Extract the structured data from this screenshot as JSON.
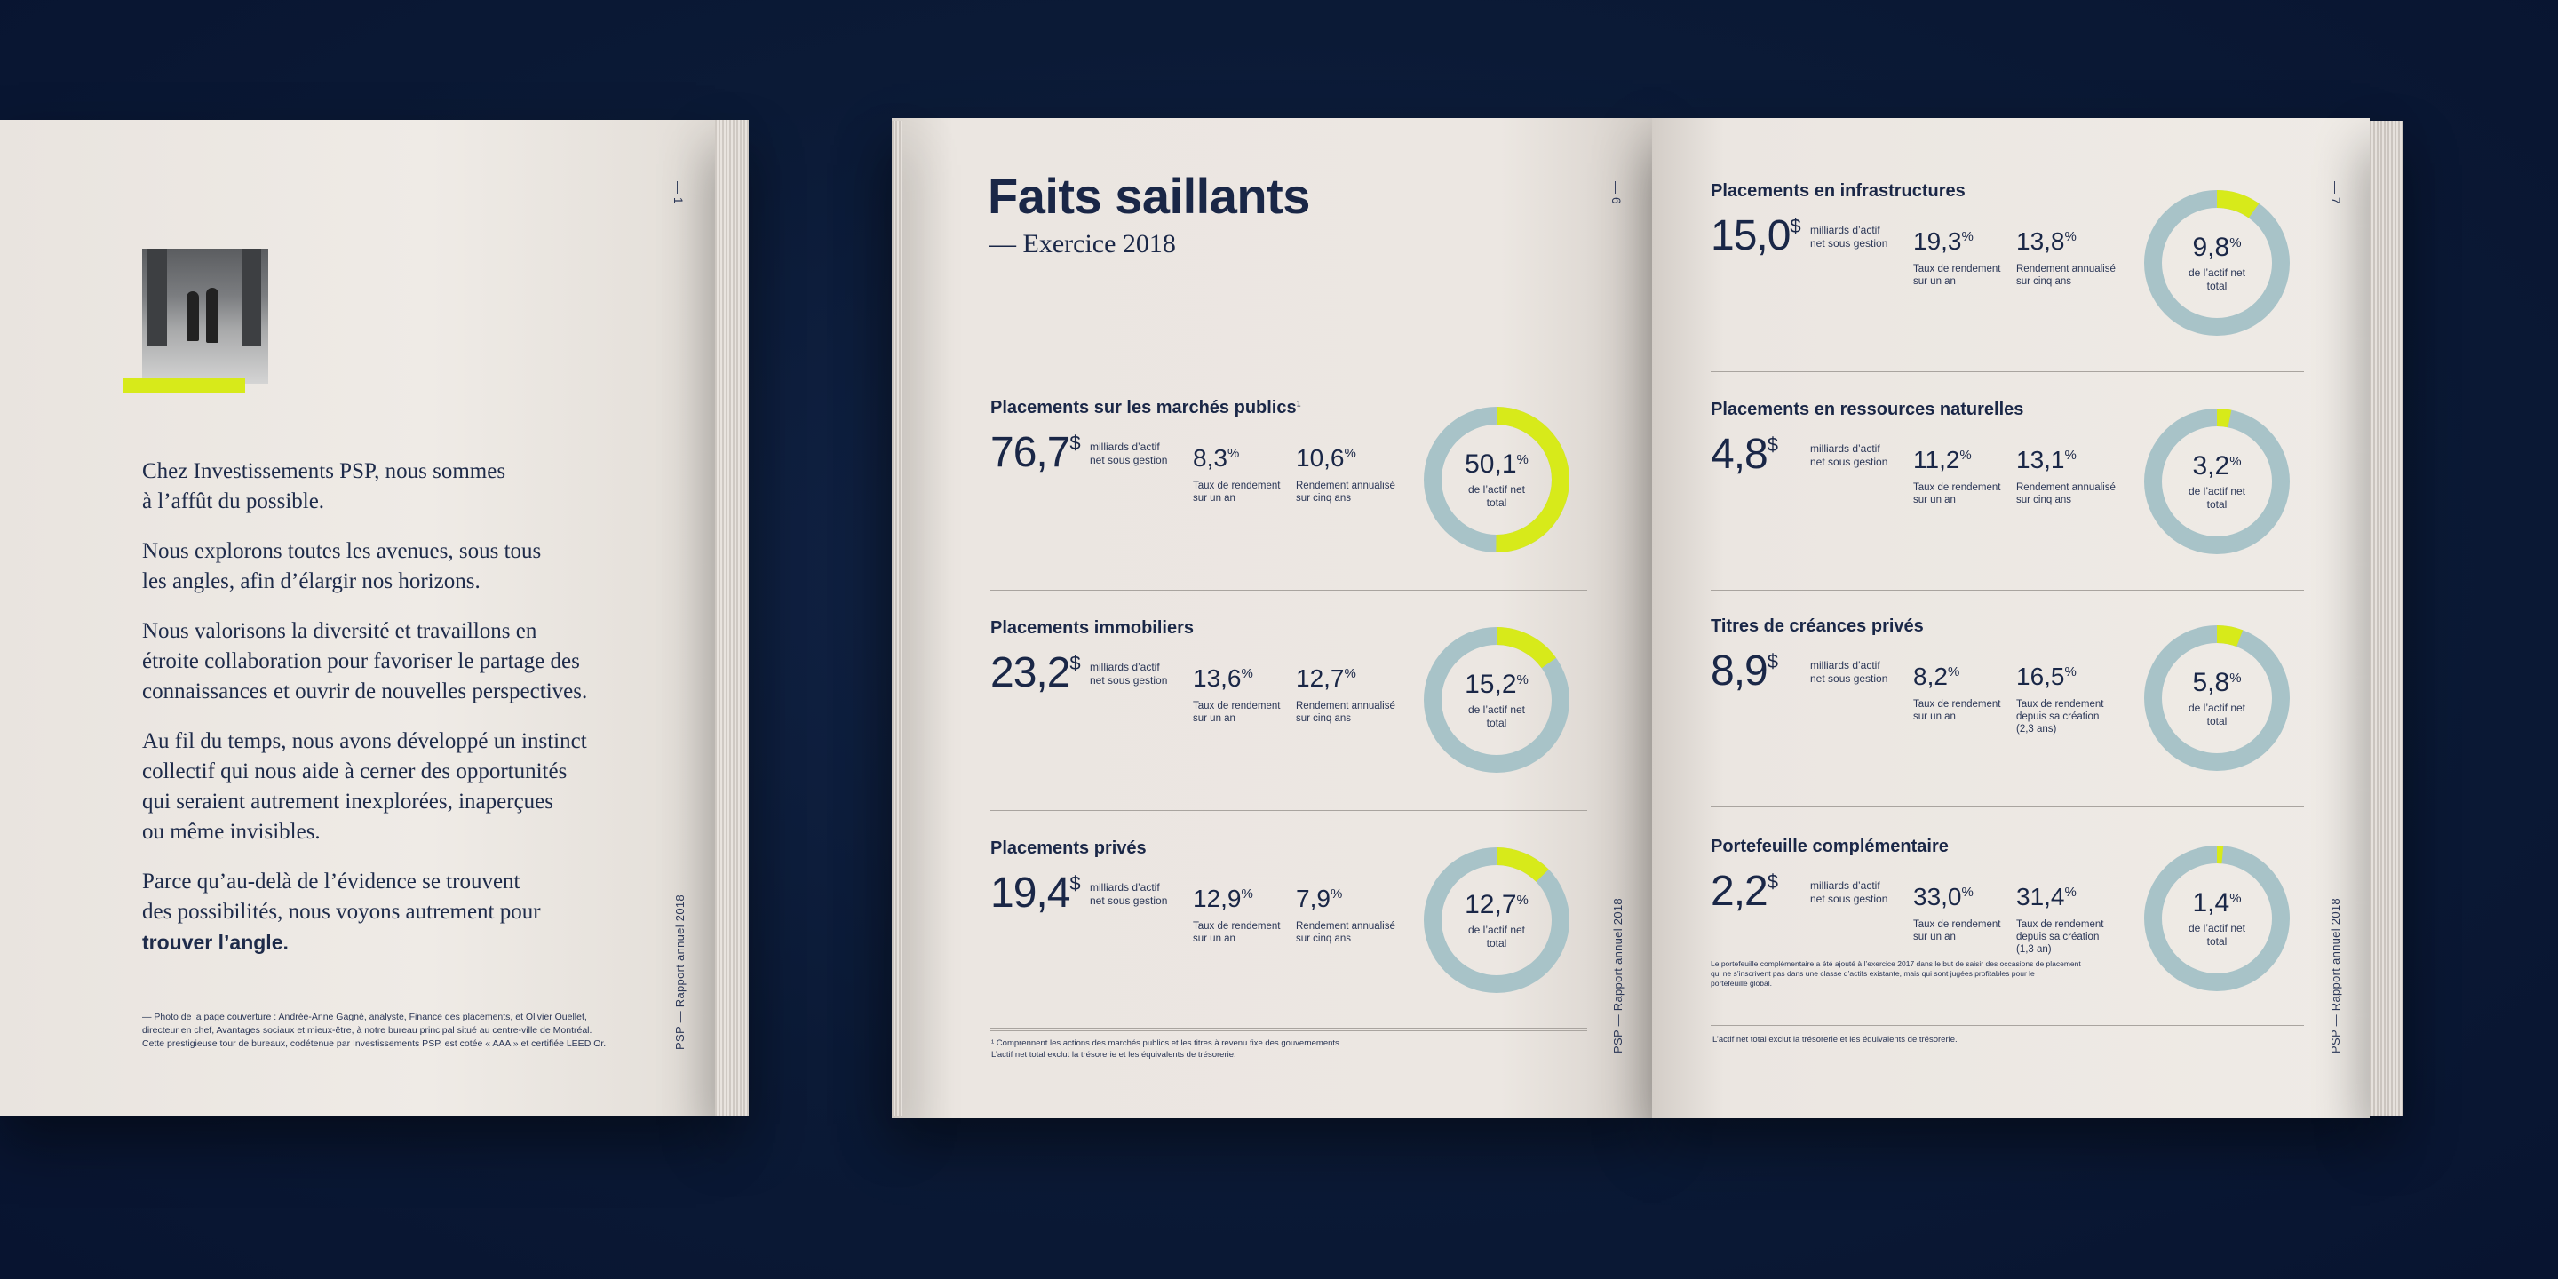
{
  "left_page": {
    "page_number": "— 1",
    "runner": "PSP — Rapport annuel 2018",
    "paragraphs": [
      [
        "Chez Investissements PSP, nous sommes",
        "à l’affût du possible."
      ],
      [
        "Nous explorons toutes les avenues, sous tous",
        "les angles, afin d’élargir nos horizons."
      ],
      [
        "Nous valorisons la diversité et travaillons en",
        "étroite collaboration pour favoriser le partage des",
        "connaissances et ouvrir de nouvelles perspectives."
      ],
      [
        "Au fil du temps, nous avons développé un instinct",
        "collectif qui nous aide à cerner des opportunités",
        "qui seraient autrement inexplorées, inaperçues",
        "ou même invisibles."
      ],
      [
        "Parce qu’au-delà de l’évidence se trouvent",
        "des possibilités, nous voyons autrement pour"
      ]
    ],
    "closing": "trouver l’angle.",
    "footnote": [
      "— Photo de la page couverture : Andrée-Anne Gagné, analyste, Finance des placements, et Olivier Ouellet,",
      "directeur en chef, Avantages sociaux et mieux-être, à notre bureau principal situé au centre-ville de Montréal.",
      "Cette prestigieuse tour de bureaux, codétenue par Investissements PSP, est cotée « AAA » et certifiée LEED Or."
    ]
  },
  "spread_left": {
    "page_number": "— 6",
    "runner": "PSP — Rapport annuel 2018",
    "title": "Faits saillants",
    "subtitle": "— Exercice 2018",
    "sections": [
      {
        "heading": "Placements sur les marchés publics",
        "note": "1",
        "aum": "76,7",
        "aum_unit": "$",
        "aum_label": [
          "milliards d’actif",
          "net sous gestion"
        ],
        "stat1": "8,3",
        "stat1_label": [
          "Taux de rendement",
          "sur un an"
        ],
        "stat2": "10,6",
        "stat2_label": [
          "Rendement annualisé",
          "sur cinq ans"
        ],
        "share": "50,1",
        "share_label": [
          "de l’actif net",
          "total"
        ],
        "pct": 50.1
      },
      {
        "heading": "Placements immobiliers",
        "note": "",
        "aum": "23,2",
        "aum_unit": "$",
        "aum_label": [
          "milliards d’actif",
          "net sous gestion"
        ],
        "stat1": "13,6",
        "stat1_label": [
          "Taux de rendement",
          "sur un an"
        ],
        "stat2": "12,7",
        "stat2_label": [
          "Rendement annualisé",
          "sur cinq ans"
        ],
        "share": "15,2",
        "share_label": [
          "de l’actif net",
          "total"
        ],
        "pct": 15.2
      },
      {
        "heading": "Placements privés",
        "note": "",
        "aum": "19,4",
        "aum_unit": "$",
        "aum_label": [
          "milliards d’actif",
          "net sous gestion"
        ],
        "stat1": "12,9",
        "stat1_label": [
          "Taux de rendement",
          "sur un an"
        ],
        "stat2": "7,9",
        "stat2_label": [
          "Rendement annualisé",
          "sur cinq ans"
        ],
        "share": "12,7",
        "share_label": [
          "de l’actif net",
          "total"
        ],
        "pct": 12.7
      }
    ],
    "footnotes": [
      "¹  Comprennent les actions des marchés publics et les titres à revenu fixe des gouvernements.",
      "L’actif net total exclut la trésorerie et les équivalents de trésorerie."
    ]
  },
  "spread_right": {
    "page_number": "— 7",
    "runner": "PSP — Rapport annuel 2018",
    "sections": [
      {
        "heading": "Placements en infrastructures",
        "aum": "15,0",
        "aum_unit": "$",
        "aum_label": [
          "milliards d’actif",
          "net sous gestion"
        ],
        "stat1": "19,3",
        "stat1_label": [
          "Taux de rendement",
          "sur un an"
        ],
        "stat2": "13,8",
        "stat2_label": [
          "Rendement annualisé",
          "sur cinq ans"
        ],
        "share": "9,8",
        "share_label": [
          "de l’actif net",
          "total"
        ],
        "pct": 9.8
      },
      {
        "heading": "Placements en ressources naturelles",
        "aum": "4,8",
        "aum_unit": "$",
        "aum_label": [
          "milliards d’actif",
          "net sous gestion"
        ],
        "stat1": "11,2",
        "stat1_label": [
          "Taux de rendement",
          "sur un an"
        ],
        "stat2": "13,1",
        "stat2_label": [
          "Rendement annualisé",
          "sur cinq ans"
        ],
        "share": "3,2",
        "share_label": [
          "de l’actif net",
          "total"
        ],
        "pct": 3.2
      },
      {
        "heading": "Titres de créances privés",
        "aum": "8,9",
        "aum_unit": "$",
        "aum_label": [
          "milliards d’actif",
          "net sous gestion"
        ],
        "stat1": "8,2",
        "stat1_label": [
          "Taux de rendement",
          "sur un an"
        ],
        "stat2": "16,5",
        "stat2_label": [
          "Taux de rendement",
          "depuis sa création",
          "(2,3 ans)"
        ],
        "share": "5,8",
        "share_label": [
          "de l’actif net",
          "total"
        ],
        "pct": 5.8
      },
      {
        "heading": "Portefeuille complémentaire",
        "aum": "2,2",
        "aum_unit": "$",
        "aum_label": [
          "milliards d’actif",
          "net sous gestion"
        ],
        "stat1": "33,0",
        "stat1_label": [
          "Taux de rendement",
          "sur un an"
        ],
        "stat2": "31,4",
        "stat2_label": [
          "Taux de rendement",
          "depuis sa création",
          "(1,3 an)"
        ],
        "share": "1,4",
        "share_label": [
          "de l’actif net",
          "total"
        ],
        "pct": 1.4,
        "note": [
          "Le portefeuille complémentaire a été ajouté à l’exercice 2017 dans le but de saisir des occasions de placement",
          "qui ne s’inscrivent pas dans une classe d’actifs existante, mais qui sont jugées profitables pour le",
          "portefeuille global."
        ]
      }
    ],
    "footnote": "L’actif net total exclut la trésorerie et les équivalents de trésorerie."
  },
  "percent_sign": "%",
  "colors": {
    "accent": "#d7ea1a",
    "ring": "#a8c3c8",
    "navy": "#1a2747",
    "background": "#0b1a36",
    "paper": "#ece7e2"
  }
}
